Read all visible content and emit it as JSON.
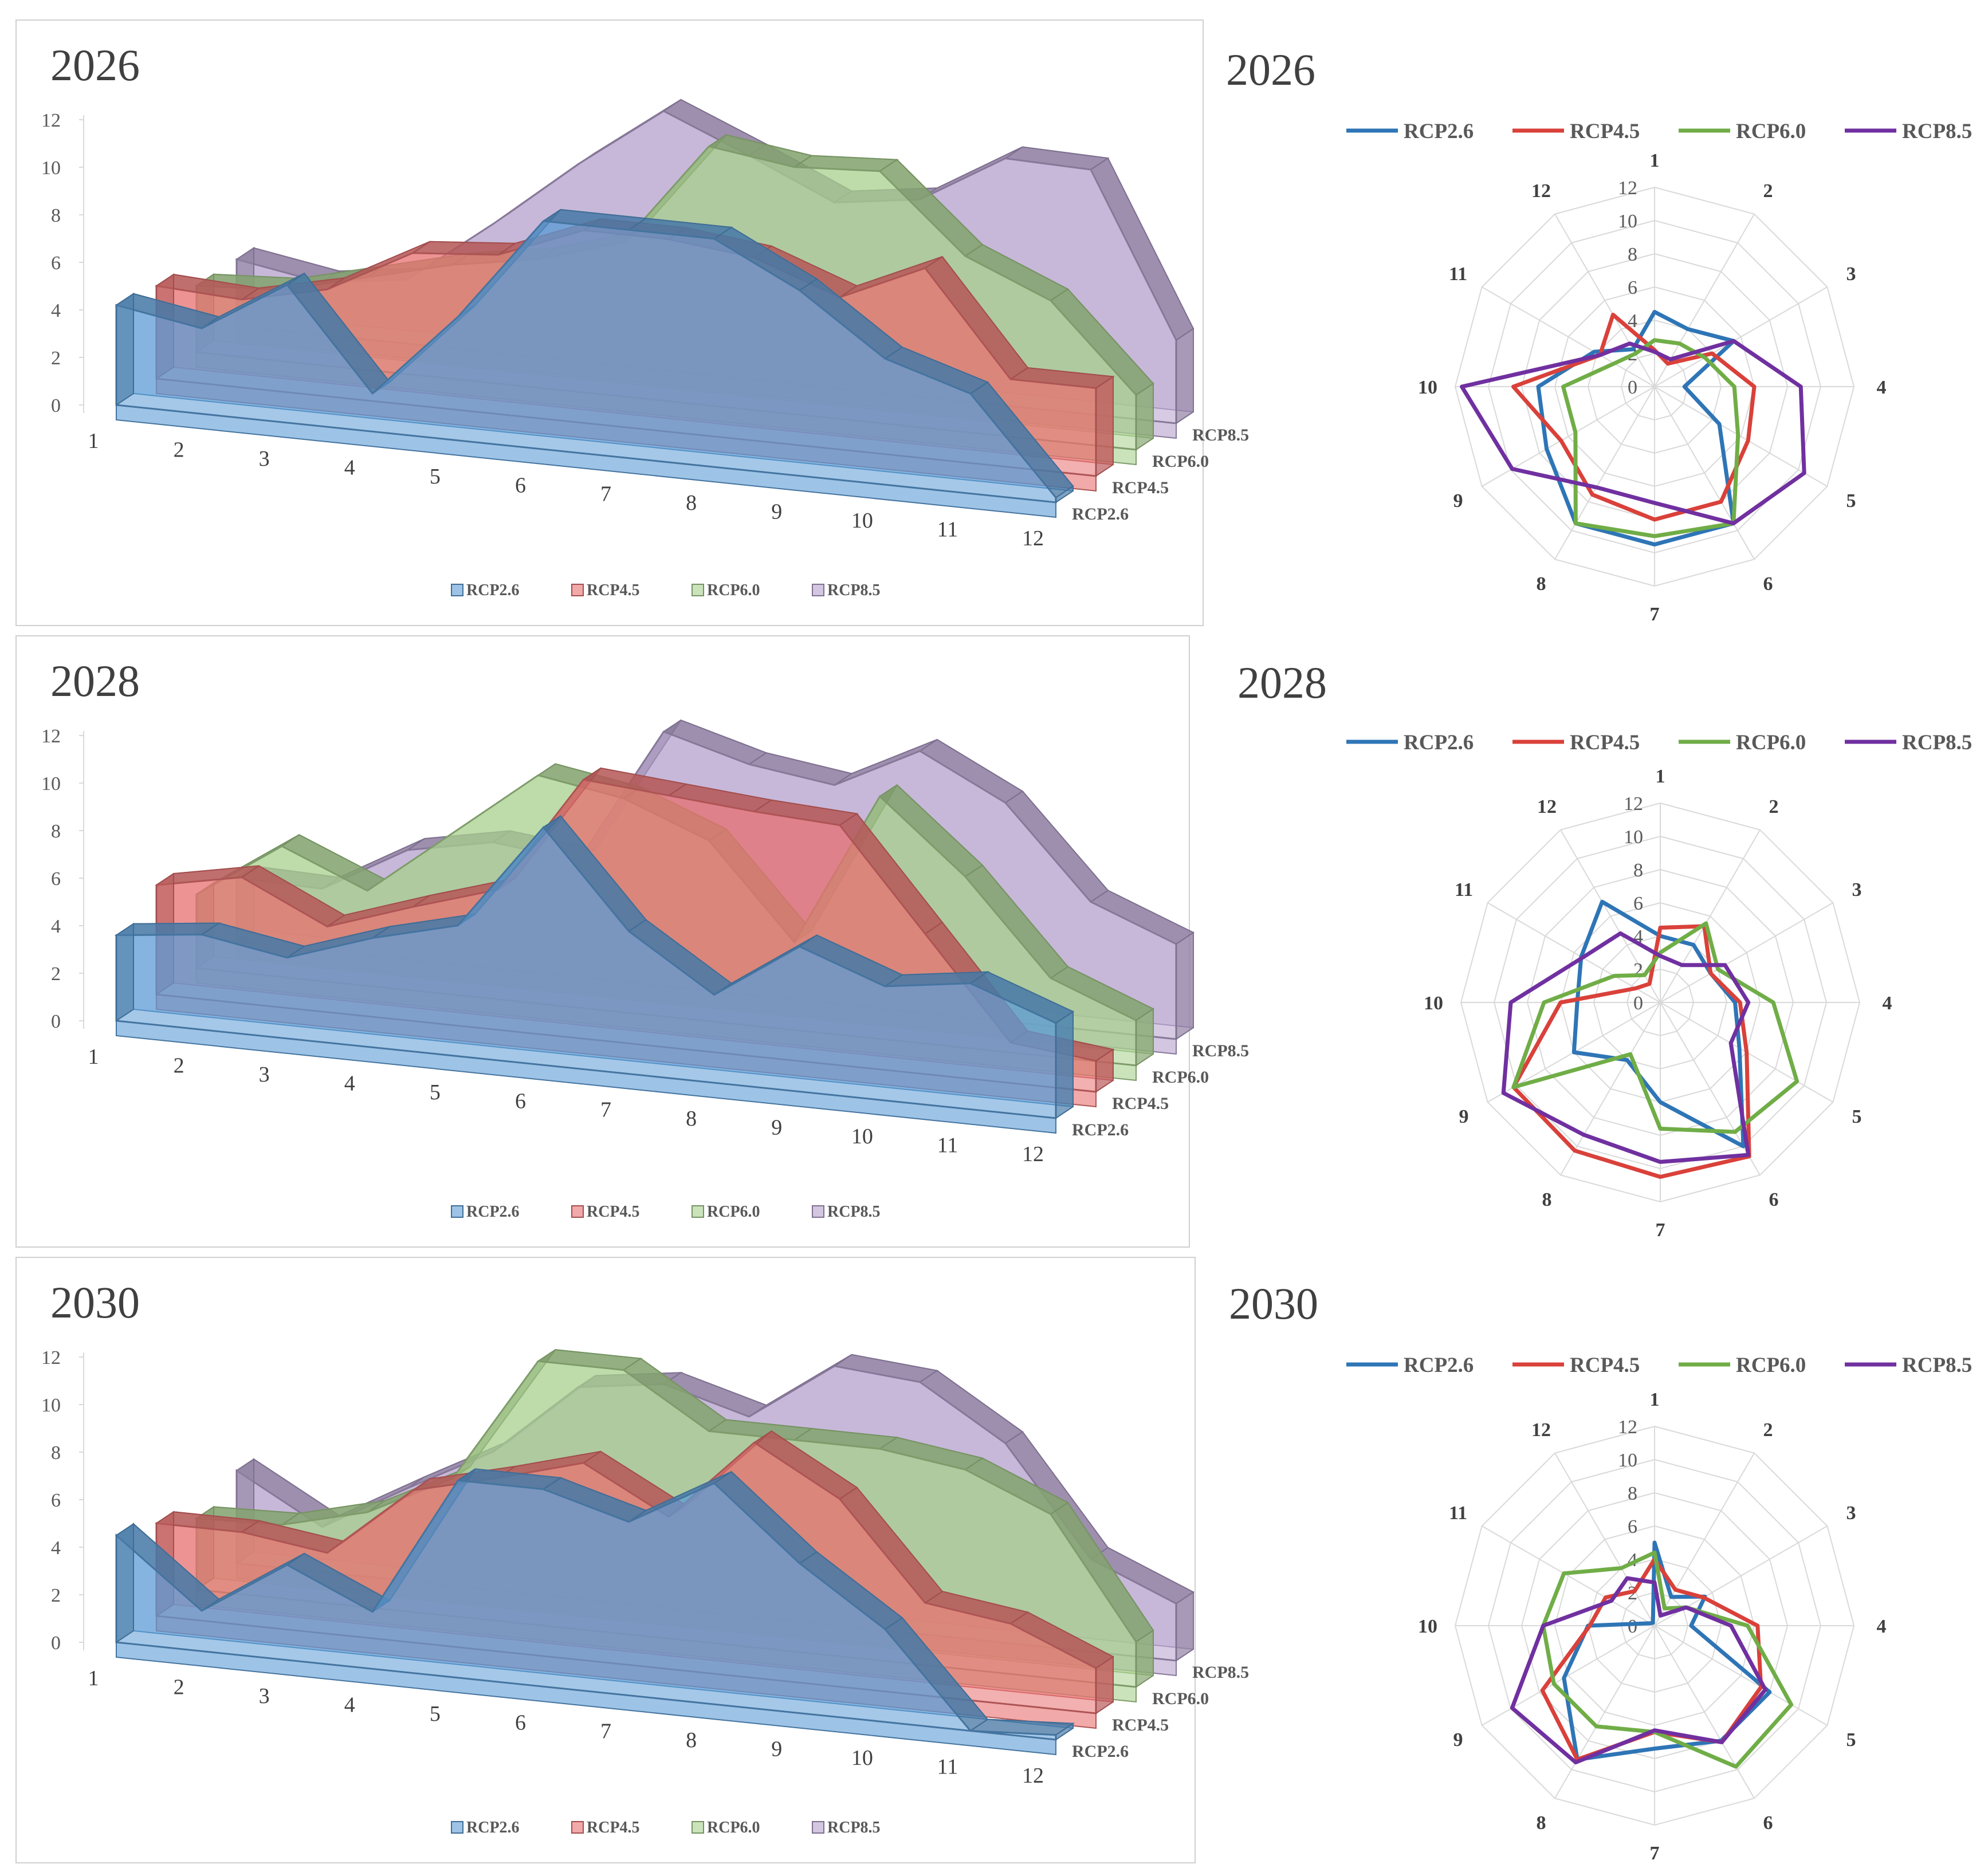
{
  "chart_data": [
    {
      "type": "area",
      "style": "3d-area",
      "title": "2026",
      "categories": [
        "1",
        "2",
        "3",
        "4",
        "5",
        "6",
        "7",
        "8",
        "9",
        "10",
        "11",
        "12"
      ],
      "ylim": [
        0,
        12
      ],
      "yticks": [
        "0",
        "2",
        "4",
        "6",
        "8",
        "10",
        "12"
      ],
      "legend": "bottom",
      "series": [
        {
          "name": "RCP2.6",
          "color": "#5B9BD5",
          "values": [
            4.2,
            3.6,
            5.8,
            1.6,
            5.2,
            9.6,
            9.6,
            9.6,
            7.8,
            5.3,
            4.2,
            0.2
          ]
        },
        {
          "name": "RCP4.5",
          "color": "#E87070",
          "values": [
            3.9,
            3.7,
            4.5,
            6.4,
            6.7,
            8.1,
            8.1,
            7.7,
            6.4,
            8.0,
            3.7,
            3.7
          ]
        },
        {
          "name": "RCP6.0",
          "color": "#A8D08D",
          "values": [
            2.8,
            3.0,
            3.9,
            4.8,
            5.4,
            6.5,
            10.9,
            10.4,
            10.6,
            7.4,
            5.9,
            2.3
          ]
        },
        {
          "name": "RCP8.5",
          "color": "#B4A0CC",
          "values": [
            2.8,
            2.2,
            2.7,
            5.4,
            8.3,
            10.9,
            9.4,
            7.8,
            8.3,
            10.4,
            10.3,
            3.5
          ]
        }
      ]
    },
    {
      "type": "radar",
      "title": "2026",
      "categories": [
        "1",
        "2",
        "3",
        "4",
        "5",
        "6",
        "7",
        "8",
        "9",
        "10",
        "11",
        "12"
      ],
      "rlim": [
        0,
        12
      ],
      "rticks": [
        "0",
        "2",
        "4",
        "6",
        "8",
        "10",
        "12"
      ],
      "legend": "top",
      "series": [
        {
          "name": "RCP2.6",
          "color": "#2E75B6",
          "values": [
            4.5,
            4.0,
            5.5,
            1.8,
            4.5,
            9.5,
            9.5,
            9.5,
            7.5,
            7.0,
            4.2,
            2.6
          ]
        },
        {
          "name": "RCP4.5",
          "color": "#D9413A",
          "values": [
            2.2,
            1.6,
            4.0,
            6.0,
            6.5,
            8.0,
            8.0,
            7.5,
            6.5,
            8.5,
            3.8,
            5.0
          ]
        },
        {
          "name": "RCP6.0",
          "color": "#70AD47",
          "values": [
            2.8,
            3.0,
            3.5,
            4.8,
            5.8,
            9.5,
            9.0,
            9.5,
            5.5,
            5.5,
            2.8,
            2.3
          ]
        },
        {
          "name": "RCP8.5",
          "color": "#7030A0",
          "values": [
            2.1,
            1.9,
            5.5,
            8.8,
            10.4,
            9.5,
            7.0,
            7.0,
            9.9,
            11.6,
            3.8,
            3.0
          ]
        }
      ]
    },
    {
      "type": "area",
      "style": "3d-area",
      "title": "2028",
      "categories": [
        "1",
        "2",
        "3",
        "4",
        "5",
        "6",
        "7",
        "8",
        "9",
        "10",
        "11",
        "12"
      ],
      "ylim": [
        0,
        12
      ],
      "yticks": [
        "0",
        "2",
        "4",
        "6",
        "8",
        "10",
        "12"
      ],
      "legend": "bottom",
      "series": [
        {
          "name": "RCP2.6",
          "color": "#5B9BD5",
          "values": [
            3.6,
            4.0,
            3.4,
            4.6,
            5.5,
            10.0,
            6.0,
            3.7,
            6.1,
            4.8,
            5.3,
            4.0
          ]
        },
        {
          "name": "RCP4.5",
          "color": "#E87070",
          "values": [
            4.6,
            5.3,
            3.6,
            4.8,
            5.9,
            10.9,
            10.6,
            10.3,
            10.1,
            5.9,
            1.7,
            1.3
          ]
        },
        {
          "name": "RCP6.0",
          "color": "#A8D08D",
          "values": [
            3.1,
            5.5,
            4.0,
            6.8,
            9.6,
            9.0,
            7.6,
            3.7,
            10.2,
            7.2,
            3.3,
            1.9
          ]
        },
        {
          "name": "RCP8.5",
          "color": "#B4A0CC",
          "values": [
            2.7,
            2.6,
            4.6,
            5.3,
            4.9,
            10.7,
            9.7,
            9.2,
            11.0,
            9.2,
            5.4,
            4.0
          ]
        }
      ]
    },
    {
      "type": "radar",
      "title": "2028",
      "categories": [
        "1",
        "2",
        "3",
        "4",
        "5",
        "6",
        "7",
        "8",
        "9",
        "10",
        "11",
        "12"
      ],
      "rlim": [
        0,
        12
      ],
      "rticks": [
        "0",
        "2",
        "4",
        "6",
        "8",
        "10",
        "12"
      ],
      "legend": "top",
      "series": [
        {
          "name": "RCP2.6",
          "color": "#2E75B6",
          "values": [
            4.0,
            4.0,
            3.5,
            4.5,
            5.5,
            10.0,
            6.0,
            4.0,
            6.0,
            5.0,
            5.5,
            7.0
          ]
        },
        {
          "name": "RCP4.5",
          "color": "#D9413A",
          "values": [
            4.5,
            5.3,
            3.5,
            4.8,
            6.0,
            10.7,
            10.5,
            10.3,
            10.2,
            6.0,
            1.7,
            1.3
          ]
        },
        {
          "name": "RCP6.0",
          "color": "#70AD47",
          "values": [
            3.0,
            5.5,
            4.0,
            6.8,
            9.5,
            9.0,
            7.6,
            3.6,
            10.2,
            7.0,
            3.2,
            1.9
          ]
        },
        {
          "name": "RCP8.5",
          "color": "#7030A0",
          "values": [
            2.8,
            2.6,
            4.5,
            5.3,
            4.9,
            10.6,
            9.6,
            9.2,
            10.9,
            9.0,
            5.4,
            4.8
          ]
        }
      ]
    },
    {
      "type": "area",
      "style": "3d-area",
      "title": "2030",
      "categories": [
        "1",
        "2",
        "3",
        "4",
        "5",
        "6",
        "7",
        "8",
        "9",
        "10",
        "11",
        "12"
      ],
      "ylim": [
        0,
        12
      ],
      "yticks": [
        "0",
        "2",
        "4",
        "6",
        "8",
        "10",
        "12"
      ],
      "legend": "bottom",
      "series": [
        {
          "name": "RCP2.6",
          "color": "#5B9BD5",
          "values": [
            4.5,
            1.7,
            4.0,
            2.4,
            8.3,
            8.3,
            7.3,
            9.3,
            6.3,
            3.9,
            0.0,
            0.2
          ]
        },
        {
          "name": "RCP4.5",
          "color": "#E87070",
          "values": [
            3.9,
            3.9,
            3.4,
            6.4,
            7.3,
            8.3,
            6.4,
            9.9,
            7.9,
            3.9,
            3.4,
            1.9
          ]
        },
        {
          "name": "RCP6.0",
          "color": "#A8D08D",
          "values": [
            3.0,
            3.1,
            4.0,
            5.8,
            11.1,
            11.1,
            8.9,
            8.9,
            8.9,
            8.4,
            6.9,
            1.9
          ]
        },
        {
          "name": "RCP8.5",
          "color": "#B4A0CC",
          "values": [
            3.9,
            1.9,
            3.9,
            5.8,
            8.9,
            9.4,
            8.4,
            10.9,
            10.6,
            8.4,
            3.9,
            2.4
          ]
        }
      ]
    },
    {
      "type": "radar",
      "title": "2030",
      "categories": [
        "1",
        "2",
        "3",
        "4",
        "5",
        "6",
        "7",
        "8",
        "9",
        "10",
        "11",
        "12"
      ],
      "rlim": [
        0,
        12
      ],
      "rticks": [
        "0",
        "2",
        "4",
        "6",
        "8",
        "10",
        "12"
      ],
      "legend": "top",
      "series": [
        {
          "name": "RCP2.6",
          "color": "#2E75B6",
          "values": [
            5.0,
            2.0,
            3.5,
            2.2,
            8.0,
            8.0,
            7.4,
            9.3,
            6.3,
            4.0,
            0.3,
            0.2
          ]
        },
        {
          "name": "RCP4.5",
          "color": "#D9413A",
          "values": [
            4.0,
            2.5,
            3.4,
            6.2,
            7.4,
            8.1,
            6.4,
            9.3,
            7.8,
            3.9,
            3.4,
            2.4
          ]
        },
        {
          "name": "RCP6.0",
          "color": "#70AD47",
          "values": [
            4.4,
            1.2,
            2.2,
            5.6,
            9.5,
            9.8,
            6.4,
            7.0,
            7.0,
            6.7,
            6.3,
            4.0
          ]
        },
        {
          "name": "RCP8.5",
          "color": "#7030A0",
          "values": [
            2.6,
            0.7,
            2.2,
            4.6,
            7.7,
            8.1,
            6.3,
            9.5,
            9.9,
            6.7,
            3.0,
            3.3
          ]
        }
      ]
    }
  ]
}
